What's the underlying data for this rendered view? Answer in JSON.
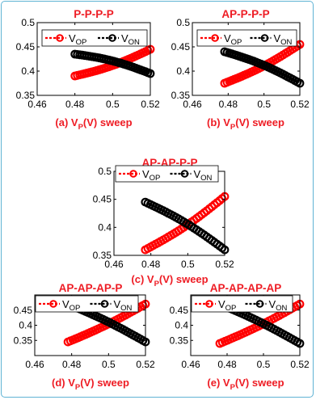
{
  "chart_data": [
    {
      "panel": "a",
      "type": "scatter",
      "title": "P-P-P-P",
      "caption": "(a) V_P(V) sweep",
      "xlim": [
        0.46,
        0.52
      ],
      "ylim": [
        0.35,
        0.5
      ],
      "xticks": [
        "0.46",
        "0.48",
        "0.5",
        "0.52"
      ],
      "yticks": [
        "0.35",
        "0.4",
        "0.45",
        "0.5"
      ],
      "series": [
        {
          "name": "V_OP",
          "color": "#ff0000",
          "x": [
            0.48,
            0.52
          ],
          "y": [
            0.39,
            0.445
          ]
        },
        {
          "name": "V_ON",
          "color": "#000000",
          "x": [
            0.48,
            0.52
          ],
          "y": [
            0.435,
            0.395
          ]
        }
      ]
    },
    {
      "panel": "b",
      "type": "scatter",
      "title": "AP-P-P-P",
      "caption": "(b) V_P(V) sweep",
      "xlim": [
        0.46,
        0.52
      ],
      "ylim": [
        0.35,
        0.5
      ],
      "xticks": [
        "0.46",
        "0.48",
        "0.5",
        "0.52"
      ],
      "yticks": [
        "0.35",
        "0.4",
        "0.45",
        "0.5"
      ],
      "series": [
        {
          "name": "V_OP",
          "color": "#ff0000",
          "x": [
            0.478,
            0.52
          ],
          "y": [
            0.375,
            0.455
          ]
        },
        {
          "name": "V_ON",
          "color": "#000000",
          "x": [
            0.478,
            0.52
          ],
          "y": [
            0.44,
            0.375
          ]
        }
      ]
    },
    {
      "panel": "c",
      "type": "scatter",
      "title": "AP-AP-P-P",
      "caption": "(c) V_P(V) sweep",
      "xlim": [
        0.46,
        0.52
      ],
      "ylim": [
        0.35,
        0.5
      ],
      "xticks": [
        "0.46",
        "0.48",
        "0.5",
        "0.52"
      ],
      "yticks": [
        "0.35",
        "0.4",
        "0.45",
        "0.5"
      ],
      "series": [
        {
          "name": "V_OP",
          "color": "#ff0000",
          "x": [
            0.477,
            0.52
          ],
          "y": [
            0.36,
            0.455
          ]
        },
        {
          "name": "V_ON",
          "color": "#000000",
          "x": [
            0.477,
            0.52
          ],
          "y": [
            0.445,
            0.36
          ]
        }
      ]
    },
    {
      "panel": "d",
      "type": "scatter",
      "title": "AP-AP-AP-P",
      "caption": "(d) V_P(V) sweep",
      "xlim": [
        0.46,
        0.52
      ],
      "ylim": [
        0.3,
        0.5
      ],
      "xticks": [
        "0.46",
        "0.48",
        "0.5",
        "0.52"
      ],
      "yticks": [
        "0.35",
        "0.4",
        "0.45"
      ],
      "series": [
        {
          "name": "V_OP",
          "color": "#ff0000",
          "x": [
            0.478,
            0.52
          ],
          "y": [
            0.345,
            0.47
          ]
        },
        {
          "name": "V_ON",
          "color": "#000000",
          "x": [
            0.478,
            0.52
          ],
          "y": [
            0.47,
            0.345
          ]
        }
      ]
    },
    {
      "panel": "e",
      "type": "scatter",
      "title": "AP-AP-AP-AP",
      "caption": "(e) V_P(V) sweep",
      "xlim": [
        0.46,
        0.52
      ],
      "ylim": [
        0.3,
        0.5
      ],
      "xticks": [
        "0.46",
        "0.48",
        "0.5",
        "0.52"
      ],
      "yticks": [
        "0.35",
        "0.4",
        "0.45"
      ],
      "series": [
        {
          "name": "V_OP",
          "color": "#ff0000",
          "x": [
            0.476,
            0.52
          ],
          "y": [
            0.34,
            0.47
          ]
        },
        {
          "name": "V_ON",
          "color": "#000000",
          "x": [
            0.476,
            0.52
          ],
          "y": [
            0.47,
            0.34
          ]
        }
      ]
    }
  ]
}
